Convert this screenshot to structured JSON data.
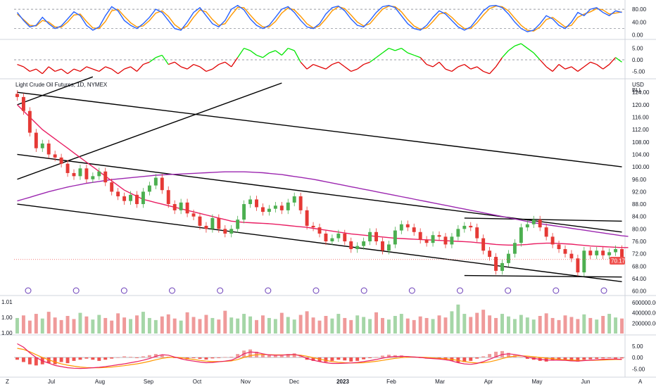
{
  "chart_title": "Light Crude Oil Futures, 1D, NYMEX",
  "price_currency": "USD",
  "price_unit": "BLL",
  "current_price_label": "70.17",
  "colors": {
    "up": "#26a69a",
    "down": "#ef5350",
    "candle_up": "#4caf50",
    "candle_down": "#e53935",
    "ma_short": "#e91e63",
    "ma_long": "#9c27b0",
    "stoch_k": "#2962ff",
    "stoch_d": "#ff9800",
    "osc_pos": "#00e600",
    "osc_neg": "#e00000",
    "macd": "#e91e63",
    "signal": "#ff9800",
    "trendline": "#000000",
    "price_tag": "#ef5350"
  },
  "time_axis": {
    "labels": [
      "Jul",
      "Aug",
      "Sep",
      "Oct",
      "Nov",
      "Dec",
      "2023",
      "Feb",
      "Mar",
      "Apr",
      "May",
      "Jun"
    ]
  },
  "event_icon_count": 13,
  "chart_data": [
    {
      "type": "line",
      "panel": "stochastic",
      "y_ticks": [
        "80.00",
        "40.00",
        "0.00"
      ],
      "ylim": [
        -5,
        100
      ],
      "reference_lines": [
        80,
        20
      ],
      "series": [
        {
          "values": [
            70,
            45,
            25,
            30,
            55,
            35,
            20,
            28,
            50,
            72,
            60,
            30,
            15,
            25,
            60,
            88,
            75,
            45,
            30,
            20,
            35,
            55,
            80,
            70,
            45,
            20,
            15,
            40,
            70,
            85,
            60,
            35,
            25,
            45,
            80,
            92,
            78,
            50,
            30,
            20,
            30,
            55,
            80,
            88,
            70,
            45,
            25,
            20,
            35,
            65,
            85,
            90,
            75,
            50,
            30,
            25,
            45,
            70,
            88,
            92,
            85,
            60,
            35,
            20,
            15,
            30,
            55,
            75,
            65,
            45,
            25,
            15,
            25,
            50,
            75,
            90,
            92,
            85,
            65,
            40,
            20,
            10,
            15,
            35,
            60,
            50,
            30,
            20,
            40,
            70,
            60,
            80,
            85,
            70,
            60,
            75,
            70
          ]
        },
        {
          "values": [
            65,
            48,
            30,
            28,
            45,
            40,
            25,
            24,
            40,
            62,
            65,
            42,
            22,
            20,
            42,
            75,
            80,
            58,
            38,
            25,
            28,
            45,
            68,
            75,
            58,
            32,
            18,
            28,
            55,
            78,
            72,
            48,
            30,
            35,
            62,
            86,
            85,
            62,
            40,
            25,
            25,
            42,
            68,
            84,
            78,
            58,
            35,
            22,
            28,
            50,
            75,
            88,
            82,
            62,
            40,
            28,
            35,
            58,
            80,
            90,
            88,
            72,
            48,
            28,
            18,
            22,
            42,
            65,
            70,
            55,
            35,
            20,
            20,
            38,
            62,
            82,
            90,
            88,
            75,
            52,
            30,
            15,
            12,
            25,
            48,
            55,
            40,
            25,
            30,
            55,
            65,
            72,
            82,
            78,
            65,
            68,
            72
          ]
        }
      ]
    },
    {
      "type": "line",
      "panel": "momentum_oscillator",
      "y_ticks": [
        "5.00",
        "0.00",
        "-5.00"
      ],
      "ylim": [
        -7,
        7
      ],
      "values": [
        -2,
        -3,
        -5,
        -4,
        -6,
        -3,
        -5,
        -4,
        -6,
        -4,
        -5,
        -3,
        -4,
        -5,
        -3,
        -4,
        -6,
        -4,
        -3,
        -5,
        -2,
        -1,
        1,
        2,
        -2,
        -1,
        -3,
        -4,
        -2,
        -3,
        -5,
        -4,
        -2,
        -1,
        -3,
        1,
        5,
        4,
        2,
        1,
        3,
        4,
        2,
        5,
        4,
        -1,
        -4,
        -2,
        -3,
        -4,
        -2,
        -1,
        -3,
        -5,
        -4,
        -2,
        -1,
        1,
        3,
        5,
        4,
        5,
        3,
        2,
        1,
        -2,
        -3,
        -1,
        -4,
        -5,
        -3,
        -2,
        -4,
        -3,
        -5,
        -6,
        -3,
        1,
        4,
        6,
        7,
        5,
        3,
        0,
        -3,
        -5,
        -2,
        -4,
        -3,
        -5,
        -3,
        -1,
        -2,
        -4,
        -2,
        1,
        -1
      ]
    },
    {
      "type": "line",
      "panel": "price",
      "y_ticks": [
        "124.00",
        "120.00",
        "116.00",
        "112.00",
        "108.00",
        "104.00",
        "100.00",
        "96.00",
        "92.00",
        "88.00",
        "84.00",
        "80.00",
        "76.00",
        "72.00",
        "68.00",
        "64.00",
        "60.00"
      ],
      "ylim": [
        59,
        127
      ],
      "close": [
        122.5,
        118,
        111,
        106,
        107.5,
        104,
        103,
        101,
        98,
        97,
        99.5,
        96,
        97,
        98.5,
        95,
        92,
        90.5,
        89,
        91,
        88,
        92,
        94,
        96.5,
        92.5,
        88,
        86,
        88.5,
        85,
        84,
        81,
        80,
        83.5,
        80,
        78.5,
        80,
        83,
        88,
        89.5,
        87,
        85.5,
        86.5,
        87.5,
        86,
        88.5,
        90.5,
        86,
        81,
        80.5,
        78.5,
        76,
        77,
        78.5,
        76,
        73.5,
        74.5,
        76,
        79,
        76,
        73,
        75,
        79.5,
        81.5,
        80.5,
        79,
        76.5,
        75.5,
        78,
        77.5,
        75,
        77.5,
        80,
        81,
        80.5,
        77,
        73,
        71,
        66.5,
        69,
        72,
        75.5,
        80.5,
        81.5,
        83,
        80.5,
        77.5,
        75,
        73.5,
        72,
        70.5,
        66,
        73,
        71.5,
        73,
        71.5,
        72.5,
        73.5,
        70.17
      ],
      "ma_short": [
        120,
        118,
        116,
        114,
        112,
        110.5,
        109,
        107.5,
        106,
        104.5,
        103,
        101.5,
        100,
        98.5,
        97,
        95.5,
        94,
        92.5,
        91.5,
        90.5,
        89.5,
        89,
        88.5,
        88,
        87.5,
        87,
        86.5,
        86,
        85.5,
        85,
        84.5,
        84,
        83.5,
        83,
        82.5,
        82.3,
        82.1,
        82,
        81.9,
        81.8,
        81.7,
        81.5,
        81.3,
        81.1,
        80.9,
        80.7,
        80.5,
        80.2,
        79.9,
        79.6,
        79.3,
        79,
        78.7,
        78.4,
        78.2,
        78,
        77.8,
        77.6,
        77.4,
        77.2,
        77,
        76.9,
        76.8,
        76.7,
        76.6,
        76.5,
        76.4,
        76.3,
        76.2,
        76.1,
        76,
        75.9,
        75.8,
        75.6,
        75.4,
        75.2,
        75,
        74.9,
        74.8,
        74.8,
        74.9,
        75,
        75.2,
        75.3,
        75.4,
        75.4,
        75.3,
        75.2,
        75.1,
        74.9,
        74.7,
        74.5,
        74.4,
        74.3,
        74.2,
        74.1,
        74,
        74
      ],
      "ma_long": [
        89,
        89.6,
        90.2,
        90.8,
        91.4,
        92,
        92.5,
        93,
        93.5,
        93.9,
        94.3,
        94.7,
        95,
        95.3,
        95.6,
        95.9,
        96.1,
        96.3,
        96.5,
        96.7,
        96.9,
        97.1,
        97.3,
        97.4,
        97.5,
        97.6,
        97.7,
        97.8,
        97.9,
        98,
        98.1,
        98.2,
        98.3,
        98.4,
        98.4,
        98.4,
        98.4,
        98.3,
        98.2,
        98.1,
        97.9,
        97.7,
        97.5,
        97.2,
        96.9,
        96.6,
        96.3,
        96,
        95.6,
        95.2,
        94.8,
        94.4,
        94,
        93.6,
        93.2,
        92.8,
        92.4,
        92,
        91.6,
        91.2,
        90.8,
        90.4,
        90,
        89.6,
        89.2,
        88.8,
        88.4,
        88,
        87.6,
        87.2,
        86.8,
        86.4,
        86,
        85.6,
        85.2,
        84.8,
        84.4,
        84,
        83.6,
        83.2,
        82.8,
        82.4,
        82,
        81.7,
        81.4,
        81.1,
        80.8,
        80.5,
        80.2,
        79.9,
        79.6,
        79.3,
        79,
        78.7,
        78.4,
        78.1,
        77.8,
        77.6
      ]
    },
    {
      "type": "bar",
      "panel": "volume",
      "y_ticks": [
        "600000.00",
        "400000.00",
        "200000.00"
      ],
      "left_ticks": [
        "1.01",
        "1.00",
        "1.00"
      ],
      "ylim": [
        0,
        680000
      ],
      "values": [
        300000,
        350000,
        250000,
        380000,
        290000,
        420000,
        310000,
        260000,
        340000,
        280000,
        400000,
        330000,
        270000,
        360000,
        300000,
        250000,
        390000,
        310000,
        280000,
        350000,
        420000,
        300000,
        260000,
        330000,
        370000,
        290000,
        250000,
        410000,
        320000,
        280000,
        360000,
        300000,
        270000,
        440000,
        310000,
        290000,
        380000,
        330000,
        260000,
        350000,
        300000,
        280000,
        400000,
        320000,
        270000,
        360000,
        430000,
        310000,
        250000,
        340000,
        290000,
        380000,
        300000,
        260000,
        350000,
        320000,
        280000,
        410000,
        300000,
        270000,
        340000,
        380000,
        290000,
        260000,
        330000,
        300000,
        280000,
        350000,
        310000,
        430000,
        560000,
        380000,
        320000,
        400000,
        460000,
        350000,
        300000,
        380000,
        330000,
        280000,
        360000,
        310000,
        270000,
        340000,
        390000,
        300000,
        260000,
        350000,
        320000,
        280000,
        370000,
        300000,
        270000,
        340000,
        380000,
        310000,
        290000
      ]
    },
    {
      "type": "bar",
      "panel": "macd",
      "y_ticks": [
        "5.00",
        "0.00",
        "-5.00"
      ],
      "ylim": [
        -8,
        8
      ],
      "histogram": [
        -1,
        -2,
        -3,
        -3.5,
        -3,
        -2.5,
        -3,
        -2,
        -2.5,
        -1.5,
        -1,
        -0.5,
        -1,
        -1.5,
        -1,
        -0.5,
        0,
        0.5,
        0.3,
        -0.2,
        0.5,
        1,
        1.5,
        1.2,
        0.3,
        -0.2,
        -0.5,
        -0.8,
        -0.3,
        -0.6,
        -0.9,
        -0.4,
        -0.1,
        0.2,
        0.3,
        1.5,
        3,
        3.5,
        2.5,
        1.5,
        1,
        1.2,
        0.8,
        1.5,
        1.8,
        0.5,
        -1,
        -1.5,
        -1.8,
        -2,
        -1.5,
        -1,
        -1.3,
        -1.8,
        -1.5,
        -0.8,
        -0.3,
        0.2,
        0.8,
        1.2,
        1,
        0.9,
        0.5,
        0.2,
        -0.2,
        -0.5,
        -0.4,
        -0.6,
        -0.9,
        -1.5,
        -2.2,
        -2,
        -1.5,
        -0.5,
        0.5,
        1.5,
        2.5,
        2.8,
        2,
        1,
        0.2,
        -0.6,
        -1,
        -1.5,
        -1.8,
        -1.3,
        -1,
        -1.2,
        -1.6,
        -1.8,
        -1,
        -0.8,
        -0.6,
        -0.4,
        -0.2,
        -0.5,
        -0.4
      ],
      "series": [
        {
          "values": [
            6,
            4.5,
            2,
            0,
            -1.5,
            -2.5,
            -3.5,
            -4,
            -4.5,
            -4.7,
            -4.8,
            -4.7,
            -4.5,
            -4.3,
            -4,
            -3.6,
            -3.2,
            -2.8,
            -2.3,
            -1.8,
            -1.2,
            -0.5,
            0.5,
            1.2,
            1,
            0.2,
            -0.6,
            -1.2,
            -1.6,
            -2,
            -2.3,
            -2.2,
            -1.9,
            -1.6,
            -1.2,
            0,
            1.6,
            2.4,
            2.2,
            1.6,
            1.1,
            1,
            1,
            1.2,
            1.3,
            0.7,
            -0.4,
            -1.2,
            -1.8,
            -2.3,
            -2.6,
            -2.6,
            -2.5,
            -2.4,
            -2.2,
            -1.8,
            -1.4,
            -0.9,
            -0.3,
            0.2,
            0.4,
            0.5,
            0.4,
            0.2,
            0,
            -0.3,
            -0.5,
            -0.7,
            -1,
            -1.5,
            -2.3,
            -2.8,
            -3,
            -2.6,
            -1.8,
            -0.8,
            0.3,
            1.3,
            1.6,
            1.3,
            0.8,
            0.1,
            -0.4,
            -0.8,
            -1.1,
            -1.2,
            -1.2,
            -1.3,
            -1.5,
            -1.6,
            -1.4,
            -1.2,
            -1,
            -0.8,
            -0.7,
            -0.7,
            -0.8
          ]
        },
        {
          "values": [
            4,
            3.5,
            2.5,
            1.2,
            0,
            -1,
            -2,
            -2.8,
            -3.4,
            -3.8,
            -4.2,
            -4.4,
            -4.5,
            -4.5,
            -4.4,
            -4.2,
            -3.9,
            -3.6,
            -3.2,
            -2.8,
            -2.3,
            -1.7,
            -1,
            -0.4,
            0,
            0.1,
            -0.1,
            -0.5,
            -0.9,
            -1.3,
            -1.6,
            -1.8,
            -1.8,
            -1.7,
            -1.5,
            -0.9,
            0,
            0.8,
            1.2,
            1.3,
            1.2,
            1.1,
            1.1,
            1.1,
            1.2,
            1,
            0.5,
            -0.1,
            -0.7,
            -1.3,
            -1.8,
            -2.1,
            -2.3,
            -2.4,
            -2.4,
            -2.3,
            -2,
            -1.7,
            -1.3,
            -0.8,
            -0.4,
            -0.1,
            0.1,
            0.2,
            0.1,
            0,
            -0.2,
            -0.4,
            -0.6,
            -0.9,
            -1.3,
            -1.8,
            -2.2,
            -2.4,
            -2.3,
            -1.9,
            -1.3,
            -0.5,
            0.2,
            0.6,
            0.7,
            0.6,
            0.3,
            0,
            -0.3,
            -0.6,
            -0.8,
            -1,
            -1.1,
            -1.3,
            -1.3,
            -1.3,
            -1.2,
            -1.1,
            -1,
            -0.9,
            -0.9
          ]
        }
      ]
    }
  ]
}
